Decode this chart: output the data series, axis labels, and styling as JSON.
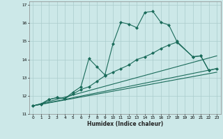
{
  "xlabel": "Humidex (Indice chaleur)",
  "background_color": "#cce8e8",
  "grid_color": "#aacccc",
  "line_color": "#1a6b5a",
  "xlim": [
    -0.5,
    23.5
  ],
  "ylim": [
    11,
    17.2
  ],
  "yticks": [
    11,
    12,
    13,
    14,
    15,
    16,
    17
  ],
  "xticks": [
    0,
    1,
    2,
    3,
    4,
    5,
    6,
    7,
    8,
    9,
    10,
    11,
    12,
    13,
    14,
    15,
    16,
    17,
    18,
    19,
    20,
    21,
    22,
    23
  ],
  "series0_x": [
    0,
    1,
    2,
    3,
    4,
    5,
    6,
    7,
    8,
    9,
    10,
    11,
    12,
    13,
    14,
    15,
    16,
    17,
    18,
    20,
    21,
    22
  ],
  "series0_y": [
    11.45,
    11.55,
    11.8,
    11.9,
    11.85,
    12.2,
    12.5,
    14.05,
    13.6,
    13.15,
    14.85,
    16.05,
    15.95,
    15.75,
    16.6,
    16.65,
    16.05,
    15.9,
    15.0,
    14.15,
    14.2,
    13.4
  ],
  "series1_x": [
    0,
    1,
    2,
    3,
    4,
    5,
    6,
    7,
    8,
    9,
    10,
    11,
    12,
    13,
    14,
    15,
    16,
    17,
    18,
    20,
    21,
    22,
    23
  ],
  "series1_y": [
    11.45,
    11.55,
    11.8,
    11.9,
    11.85,
    12.1,
    12.35,
    12.5,
    12.8,
    13.1,
    13.3,
    13.5,
    13.7,
    14.0,
    14.15,
    14.35,
    14.6,
    14.8,
    14.95,
    14.15,
    14.2,
    13.4,
    13.5
  ],
  "line2_x": [
    0,
    23
  ],
  "line2_y": [
    11.45,
    14.2
  ],
  "line3_x": [
    0,
    23
  ],
  "line3_y": [
    11.45,
    13.5
  ],
  "line4_x": [
    0,
    23
  ],
  "line4_y": [
    11.45,
    13.3
  ]
}
